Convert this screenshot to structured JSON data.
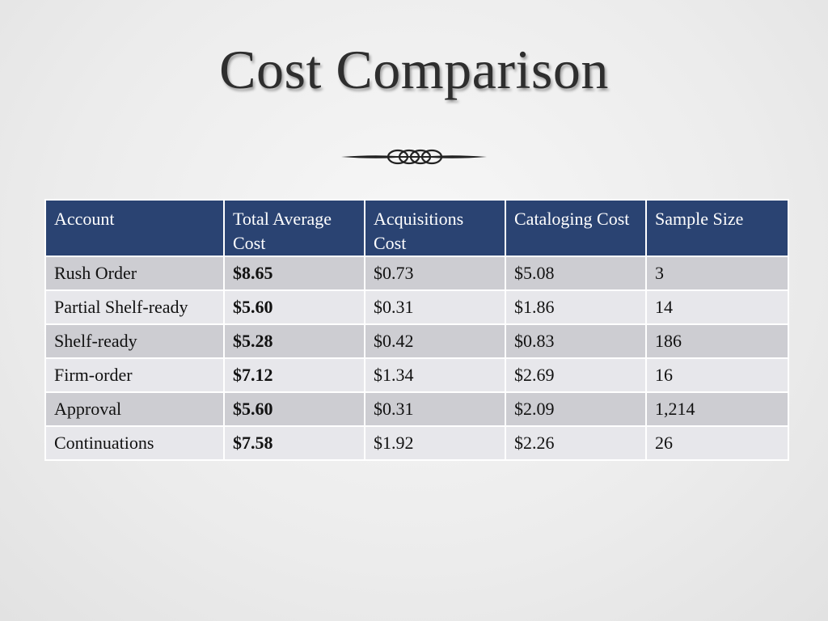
{
  "slide": {
    "title": "Cost Comparison"
  },
  "table": {
    "headers": [
      "Account",
      "Total Average Cost",
      "Acquisitions Cost",
      "Cataloging Cost",
      "Sample Size"
    ],
    "rows": [
      [
        "Rush Order",
        "$8.65",
        "$0.73",
        "$5.08",
        "3"
      ],
      [
        "Partial Shelf-ready",
        "$5.60",
        "$0.31",
        "$1.86",
        "14"
      ],
      [
        "Shelf-ready",
        "$5.28",
        "$0.42",
        "$0.83",
        "186"
      ],
      [
        "Firm-order",
        "$7.12",
        "$1.34",
        "$2.69",
        "16"
      ],
      [
        "Approval",
        "$5.60",
        "$0.31",
        "$2.09",
        "1,214"
      ],
      [
        "Continuations",
        "$7.58",
        "$1.92",
        "$2.26",
        "26"
      ]
    ]
  },
  "colors": {
    "header_bg": "#2a4372",
    "row_odd_bg": "#cdcdd2",
    "row_even_bg": "#e7e7eb",
    "title_text": "#2e2e2e"
  },
  "icons": {
    "ornament": "flourish-divider-icon"
  }
}
